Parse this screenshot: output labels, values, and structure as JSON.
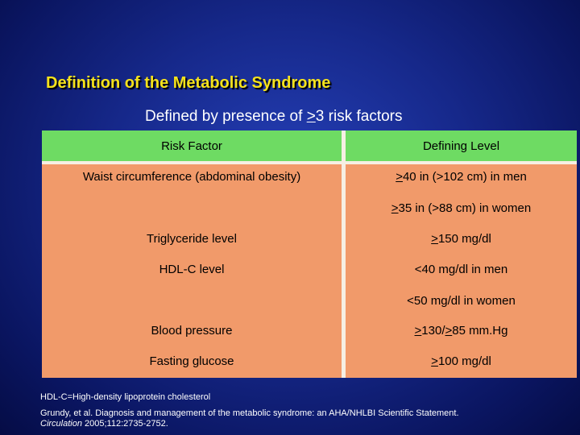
{
  "slide": {
    "title": "Definition of the Metabolic Syndrome",
    "subtitle_prefix": "Defined by presence of ",
    "subtitle_symbol": ">",
    "subtitle_suffix": "3 risk factors"
  },
  "table": {
    "headers": {
      "risk_factor": "Risk Factor",
      "defining_level": "Defining Level"
    },
    "rows": [
      {
        "factor": "Waist circumference (abdominal obesity)",
        "levels": [
          {
            "sym": ">",
            "text": "40 in (>102 cm) in men"
          },
          {
            "sym": ">",
            "text": "35 in (>88 cm) in women"
          }
        ]
      },
      {
        "factor": "Triglyceride level",
        "levels": [
          {
            "sym": ">",
            "text": "150 mg/dl"
          }
        ]
      },
      {
        "factor": "HDL-C level",
        "levels": [
          {
            "sym": "",
            "text": "<40 mg/dl in men"
          },
          {
            "sym": "",
            "text": "<50 mg/dl in women"
          }
        ]
      },
      {
        "factor": "Blood pressure",
        "levels": [
          {
            "sym": ">",
            "text": "130/",
            "sym2": ">",
            "text2": "85 mm.Hg"
          }
        ]
      },
      {
        "factor": "Fasting glucose",
        "levels": [
          {
            "sym": ">",
            "text": "100 mg/dl"
          }
        ]
      }
    ]
  },
  "footnotes": {
    "abbreviation": "HDL-C=High-density lipoprotein cholesterol",
    "citation_line1": "Grundy, et al. Diagnosis and management of the metabolic syndrome: an AHA/NHLBI Scientific Statement.",
    "citation_journal": "Circulation",
    "citation_rest": " 2005;112:2735-2752."
  },
  "colors": {
    "background": "#16288a",
    "title": "#f5e21b",
    "header_row": "#6edb63",
    "body_rows": "#f19a6a",
    "dividers": "#f6efe3"
  }
}
